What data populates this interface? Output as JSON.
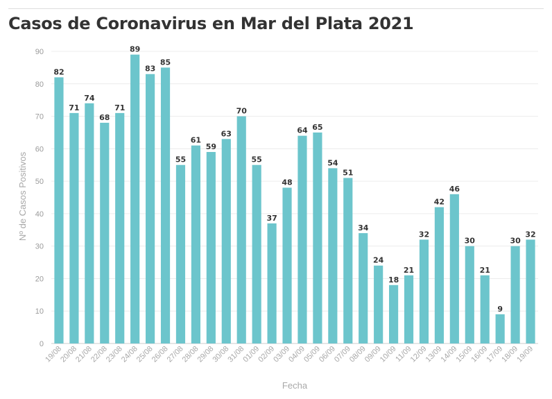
{
  "chart_data": {
    "type": "bar",
    "title": "Casos de Coronavirus en Mar del Plata 2021",
    "xlabel": "Fecha",
    "ylabel": "Nº de Casos Positivos",
    "ylim": [
      0,
      90
    ],
    "yticks": [
      0,
      10,
      20,
      30,
      40,
      50,
      60,
      70,
      80,
      90
    ],
    "grid": true,
    "bar_color": "#6cc5cc",
    "categories": [
      "19/08",
      "20/08",
      "21/08",
      "22/08",
      "23/08",
      "24/08",
      "25/08",
      "26/08",
      "27/08",
      "28/08",
      "29/08",
      "30/08",
      "31/08",
      "01/09",
      "02/09",
      "03/09",
      "04/09",
      "05/09",
      "06/09",
      "07/09",
      "08/09",
      "09/09",
      "10/09",
      "11/09",
      "12/09",
      "13/09",
      "14/09",
      "15/09",
      "16/09",
      "17/09",
      "18/09",
      "19/09"
    ],
    "values": [
      82,
      71,
      74,
      68,
      71,
      89,
      83,
      85,
      55,
      61,
      59,
      63,
      70,
      55,
      37,
      48,
      64,
      65,
      54,
      51,
      34,
      24,
      18,
      21,
      32,
      42,
      46,
      30,
      21,
      9,
      30,
      32
    ]
  }
}
